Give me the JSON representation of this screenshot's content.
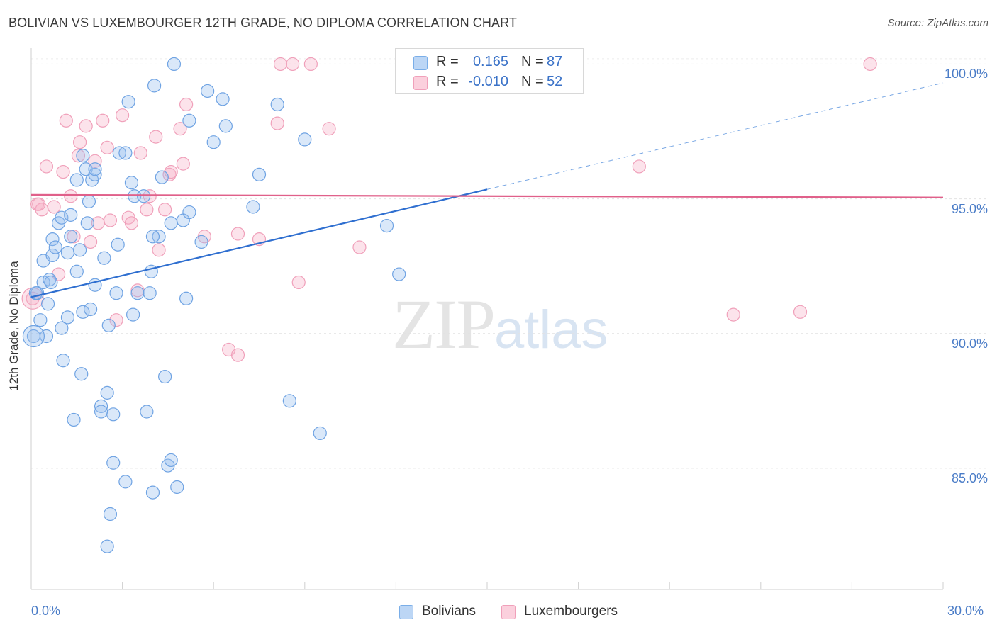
{
  "title": "BOLIVIAN VS LUXEMBOURGER 12TH GRADE, NO DIPLOMA CORRELATION CHART",
  "source": "Source: ZipAtlas.com",
  "watermark": {
    "zip": "ZIP",
    "atlas": "atlas"
  },
  "legend_top": [
    {
      "r_label": "R =",
      "r_value": "0.165",
      "n_label": "N =",
      "n_value": "87",
      "color": "#7aaee8"
    },
    {
      "r_label": "R =",
      "r_value": "-0.010",
      "n_label": "N =",
      "n_value": "52",
      "color": "#f0a0ba"
    }
  ],
  "legend_bottom": [
    {
      "label": "Bolivians",
      "color": "#7aaee8"
    },
    {
      "label": "Luxembourgers",
      "color": "#f0a0ba"
    }
  ],
  "chart_data": {
    "type": "scatter",
    "title": "BOLIVIAN VS LUXEMBOURGER 12TH GRADE, NO DIPLOMA CORRELATION CHART",
    "xlabel": "",
    "ylabel": "12th Grade, No Diploma",
    "xlim": [
      0,
      30
    ],
    "ylim": [
      80.5,
      100.8
    ],
    "x_tick_labels": [
      "0.0%",
      "30.0%"
    ],
    "y_ticks": [
      85,
      90,
      95,
      100
    ],
    "y_tick_labels": [
      "85.0%",
      "90.0%",
      "95.0%",
      "100.0%"
    ],
    "grid": true,
    "series": [
      {
        "name": "Bolivians",
        "color": "#6fa3e3",
        "trend": {
          "x": [
            0,
            15
          ],
          "y": [
            91.35,
            95.35
          ],
          "dashed_to": [
            30,
            99.3
          ],
          "color": "#2f6fd0"
        },
        "points": [
          [
            0.08,
            89.9
          ],
          [
            0.2,
            91.5
          ],
          [
            0.3,
            90.5
          ],
          [
            0.4,
            91.9
          ],
          [
            0.4,
            92.7
          ],
          [
            0.5,
            89.9
          ],
          [
            0.55,
            91.1
          ],
          [
            0.6,
            92.0
          ],
          [
            0.65,
            91.9
          ],
          [
            0.7,
            92.9
          ],
          [
            0.7,
            93.5
          ],
          [
            0.8,
            93.2
          ],
          [
            0.9,
            94.1
          ],
          [
            1.0,
            90.2
          ],
          [
            1.0,
            94.3
          ],
          [
            1.05,
            89.0
          ],
          [
            1.2,
            93.0
          ],
          [
            1.2,
            90.6
          ],
          [
            1.3,
            93.6
          ],
          [
            1.3,
            94.4
          ],
          [
            1.4,
            86.8
          ],
          [
            1.5,
            92.3
          ],
          [
            1.5,
            95.7
          ],
          [
            1.6,
            93.1
          ],
          [
            1.65,
            88.5
          ],
          [
            1.7,
            96.6
          ],
          [
            1.7,
            90.8
          ],
          [
            1.8,
            96.1
          ],
          [
            1.85,
            94.1
          ],
          [
            1.9,
            94.9
          ],
          [
            1.95,
            90.9
          ],
          [
            2.0,
            95.7
          ],
          [
            2.1,
            95.9
          ],
          [
            2.1,
            96.1
          ],
          [
            2.1,
            91.8
          ],
          [
            2.3,
            87.3
          ],
          [
            2.3,
            87.1
          ],
          [
            2.4,
            92.8
          ],
          [
            2.5,
            82.1
          ],
          [
            2.5,
            87.8
          ],
          [
            2.55,
            90.3
          ],
          [
            2.6,
            83.3
          ],
          [
            2.7,
            87.0
          ],
          [
            2.7,
            85.2
          ],
          [
            2.8,
            91.5
          ],
          [
            2.85,
            93.3
          ],
          [
            2.9,
            96.7
          ],
          [
            3.1,
            96.7
          ],
          [
            3.1,
            84.5
          ],
          [
            3.2,
            98.6
          ],
          [
            3.3,
            95.6
          ],
          [
            3.35,
            90.7
          ],
          [
            3.4,
            95.1
          ],
          [
            3.5,
            91.5
          ],
          [
            3.7,
            95.1
          ],
          [
            3.8,
            87.1
          ],
          [
            3.9,
            91.5
          ],
          [
            3.95,
            92.3
          ],
          [
            4.0,
            84.1
          ],
          [
            4.05,
            99.2
          ],
          [
            4.2,
            93.6
          ],
          [
            4.3,
            95.8
          ],
          [
            4.4,
            88.4
          ],
          [
            4.5,
            85.1
          ],
          [
            4.6,
            85.3
          ],
          [
            4.6,
            94.1
          ],
          [
            4.8,
            84.3
          ],
          [
            5.0,
            94.2
          ],
          [
            5.1,
            91.3
          ],
          [
            5.2,
            97.9
          ],
          [
            5.2,
            94.5
          ],
          [
            5.6,
            93.4
          ],
          [
            5.8,
            99.0
          ],
          [
            6.0,
            97.1
          ],
          [
            6.3,
            98.7
          ],
          [
            6.4,
            97.7
          ],
          [
            7.3,
            94.7
          ],
          [
            7.5,
            95.9
          ],
          [
            8.1,
            98.5
          ],
          [
            8.5,
            87.5
          ],
          [
            9.0,
            97.2
          ],
          [
            9.5,
            86.3
          ],
          [
            11.7,
            94.0
          ],
          [
            12.1,
            92.2
          ],
          [
            4.7,
            100.0
          ],
          [
            4.0,
            93.6
          ],
          [
            0.15,
            91.5
          ]
        ]
      },
      {
        "name": "Luxembourgers",
        "color": "#f0a0ba",
        "trend": {
          "x": [
            0,
            30
          ],
          "y": [
            95.15,
            95.05
          ],
          "color": "#e0608a"
        },
        "points": [
          [
            0.05,
            91.3
          ],
          [
            0.2,
            94.8
          ],
          [
            0.35,
            94.6
          ],
          [
            0.5,
            96.2
          ],
          [
            0.75,
            94.7
          ],
          [
            0.9,
            92.2
          ],
          [
            1.05,
            96.0
          ],
          [
            1.15,
            97.9
          ],
          [
            1.3,
            95.1
          ],
          [
            1.4,
            93.6
          ],
          [
            1.55,
            96.6
          ],
          [
            1.6,
            97.1
          ],
          [
            1.8,
            97.7
          ],
          [
            1.95,
            93.4
          ],
          [
            2.1,
            96.4
          ],
          [
            2.2,
            94.1
          ],
          [
            2.35,
            97.9
          ],
          [
            2.5,
            96.9
          ],
          [
            2.6,
            94.2
          ],
          [
            2.8,
            90.5
          ],
          [
            3.0,
            98.1
          ],
          [
            3.2,
            94.3
          ],
          [
            3.3,
            94.1
          ],
          [
            3.5,
            91.6
          ],
          [
            3.6,
            96.7
          ],
          [
            3.8,
            94.6
          ],
          [
            3.9,
            95.1
          ],
          [
            4.1,
            97.3
          ],
          [
            4.2,
            93.1
          ],
          [
            4.4,
            94.6
          ],
          [
            4.55,
            95.9
          ],
          [
            4.6,
            96.0
          ],
          [
            4.9,
            97.6
          ],
          [
            5.0,
            96.3
          ],
          [
            5.1,
            98.5
          ],
          [
            5.7,
            93.6
          ],
          [
            6.5,
            89.4
          ],
          [
            6.8,
            89.2
          ],
          [
            6.8,
            93.7
          ],
          [
            7.5,
            93.5
          ],
          [
            8.1,
            97.8
          ],
          [
            8.2,
            100.0
          ],
          [
            8.6,
            100.0
          ],
          [
            8.8,
            91.9
          ],
          [
            9.2,
            100.0
          ],
          [
            9.8,
            97.6
          ],
          [
            10.8,
            93.2
          ],
          [
            20.0,
            96.2
          ],
          [
            23.1,
            90.7
          ],
          [
            25.3,
            90.8
          ],
          [
            27.6,
            100.0
          ],
          [
            0.25,
            94.8
          ]
        ]
      }
    ]
  }
}
